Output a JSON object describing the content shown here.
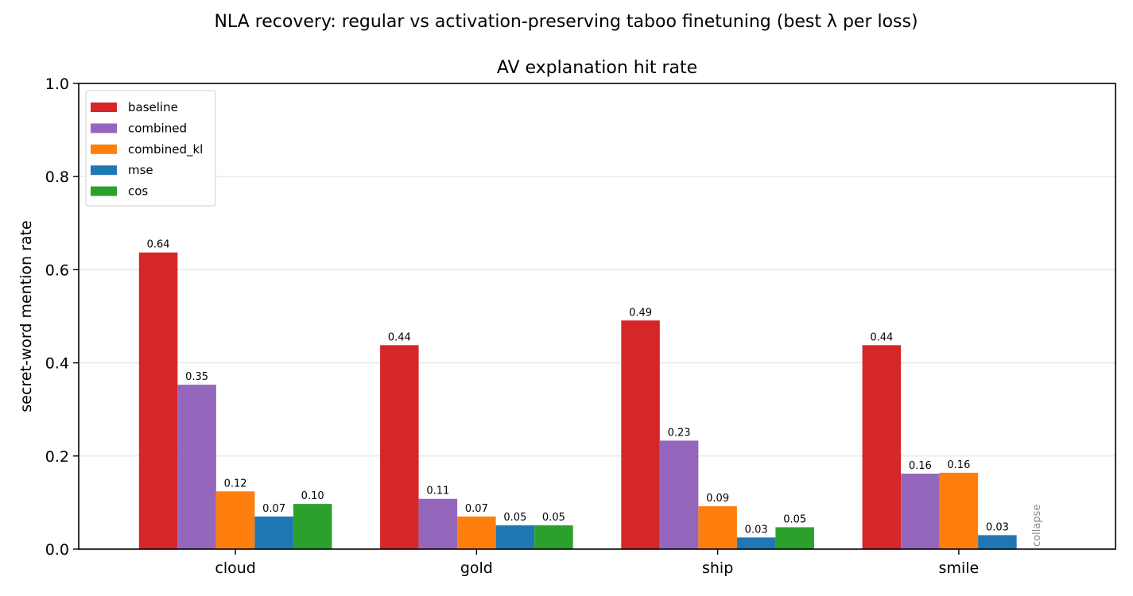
{
  "chart_data": {
    "type": "bar",
    "title": "AV explanation hit rate",
    "suptitle": "NLA recovery: regular vs activation-preserving taboo finetuning (best λ per loss)",
    "xlabel": "",
    "ylabel": "secret-word mention rate",
    "ylim": [
      0,
      1.0
    ],
    "yticks": [
      "0.0",
      "0.2",
      "0.4",
      "0.6",
      "0.8",
      "1.0"
    ],
    "grid": "y",
    "legend_position": "top-left",
    "categories": [
      "cloud",
      "gold",
      "ship",
      "smile"
    ],
    "series": [
      {
        "name": "baseline",
        "color": "#d62728",
        "values": [
          0.637,
          0.438,
          0.491,
          0.438
        ],
        "labels": [
          "0.64",
          "0.44",
          "0.49",
          "0.44"
        ]
      },
      {
        "name": "combined",
        "color": "#9467bd",
        "values": [
          0.353,
          0.108,
          0.233,
          0.162
        ],
        "labels": [
          "0.35",
          "0.11",
          "0.23",
          "0.16"
        ]
      },
      {
        "name": "combined_kl",
        "color": "#ff7f0e",
        "values": [
          0.124,
          0.07,
          0.092,
          0.164
        ],
        "labels": [
          "0.12",
          "0.07",
          "0.09",
          "0.16"
        ]
      },
      {
        "name": "mse",
        "color": "#1f77b4",
        "values": [
          0.07,
          0.051,
          0.025,
          0.03
        ],
        "labels": [
          "0.07",
          "0.05",
          "0.03",
          "0.03"
        ]
      },
      {
        "name": "cos",
        "color": "#2ca02c",
        "values": [
          0.097,
          0.051,
          0.047,
          null
        ],
        "labels": [
          "0.10",
          "0.05",
          "0.05",
          ""
        ]
      }
    ],
    "annotations": [
      {
        "category": "smile",
        "series": "cos",
        "text": "collapse",
        "color": "#888888"
      }
    ]
  }
}
